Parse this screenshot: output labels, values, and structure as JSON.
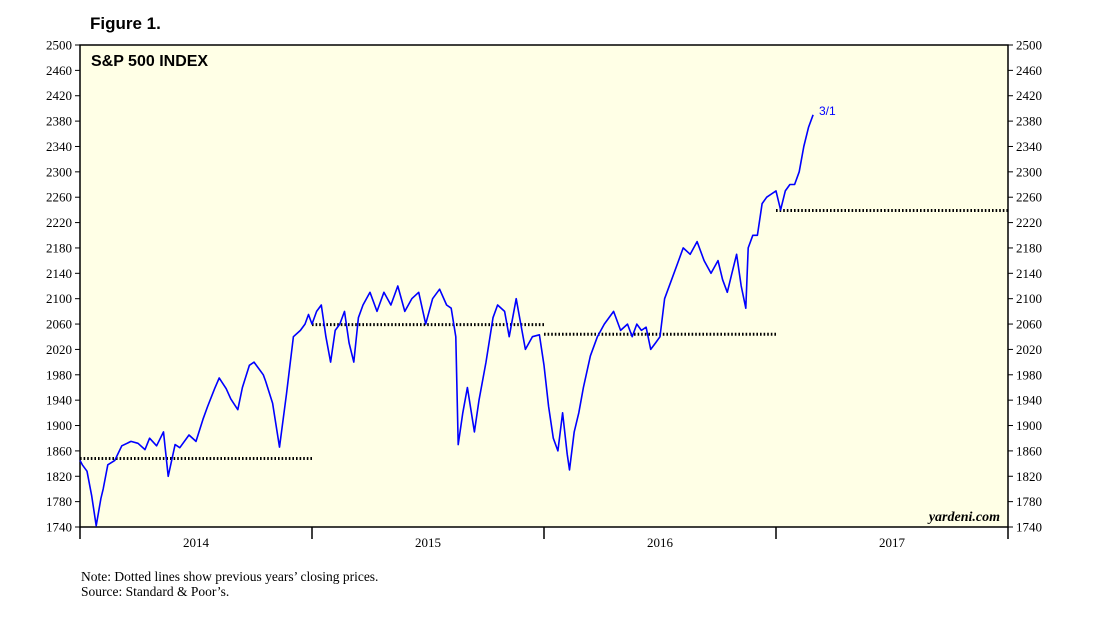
{
  "figure_label": "Figure 1.",
  "notes": {
    "line1": "Note: Dotted lines show previous years’ closing prices.",
    "line2": "Source: Standard & Poor’s."
  },
  "colors": {
    "background": "#ffffe6",
    "series": "#0000ff",
    "reference": "#000000"
  },
  "chart_data": {
    "type": "line",
    "title": "S&P 500 INDEX",
    "watermark": "yardeni.com",
    "end_label": "3/1",
    "xlabel": "",
    "ylabel": "",
    "xlim": [
      2014.0,
      2018.0
    ],
    "ylim": [
      1740,
      2500
    ],
    "yticks": [
      1740,
      1780,
      1820,
      1860,
      1900,
      1940,
      1980,
      2020,
      2060,
      2100,
      2140,
      2180,
      2220,
      2260,
      2300,
      2340,
      2380,
      2420,
      2460,
      2500
    ],
    "year_ticks": [
      2014,
      2015,
      2016,
      2017,
      2018
    ],
    "year_labels": [
      "2014",
      "2015",
      "2016",
      "2017"
    ],
    "grid": false,
    "series": [
      {
        "x": [
          2014.0,
          2014.01,
          2014.03,
          2014.05,
          2014.07,
          2014.09,
          2014.1,
          2014.12,
          2014.15,
          2014.18,
          2014.22,
          2014.25,
          2014.28,
          2014.3,
          2014.33,
          2014.36,
          2014.38,
          2014.41,
          2014.43,
          2014.47,
          2014.5,
          2014.53,
          2014.55,
          2014.58,
          2014.6,
          2014.63,
          2014.65,
          2014.68,
          2014.7,
          2014.73,
          2014.75,
          2014.77,
          2014.79,
          2014.8,
          2014.83,
          2014.86,
          2014.89,
          2014.92,
          2014.95,
          2014.97,
          2014.985,
          2015.0,
          2015.02,
          2015.04,
          2015.06,
          2015.08,
          2015.1,
          2015.12,
          2015.14,
          2015.16,
          2015.18,
          2015.2,
          2015.22,
          2015.25,
          2015.28,
          2015.31,
          2015.34,
          2015.37,
          2015.4,
          2015.43,
          2015.46,
          2015.49,
          2015.52,
          2015.55,
          2015.58,
          2015.6,
          2015.62,
          2015.63,
          2015.65,
          2015.67,
          2015.7,
          2015.72,
          2015.75,
          2015.78,
          2015.8,
          2015.83,
          2015.85,
          2015.88,
          2015.9,
          2015.92,
          2015.95,
          2015.98,
          2016.0,
          2016.02,
          2016.04,
          2016.06,
          2016.08,
          2016.1,
          2016.11,
          2016.13,
          2016.15,
          2016.17,
          2016.2,
          2016.23,
          2016.26,
          2016.3,
          2016.33,
          2016.36,
          2016.38,
          2016.4,
          2016.42,
          2016.44,
          2016.46,
          2016.48,
          2016.5,
          2016.52,
          2016.55,
          2016.58,
          2016.6,
          2016.63,
          2016.66,
          2016.69,
          2016.72,
          2016.75,
          2016.77,
          2016.79,
          2016.81,
          2016.83,
          2016.85,
          2016.87,
          2016.88,
          2016.9,
          2016.92,
          2016.94,
          2016.96,
          2016.98,
          2017.0,
          2017.02,
          2017.04,
          2017.06,
          2017.08,
          2017.1,
          2017.12,
          2017.14,
          2017.16
        ],
        "y": [
          1845,
          1838,
          1828,
          1790,
          1742,
          1785,
          1800,
          1838,
          1845,
          1868,
          1875,
          1872,
          1862,
          1880,
          1868,
          1890,
          1820,
          1870,
          1865,
          1885,
          1875,
          1910,
          1930,
          1958,
          1975,
          1958,
          1942,
          1925,
          1960,
          1995,
          2000,
          1990,
          1980,
          1970,
          1935,
          1866,
          1950,
          2040,
          2050,
          2060,
          2075,
          2060,
          2080,
          2090,
          2040,
          2000,
          2050,
          2060,
          2080,
          2030,
          2000,
          2070,
          2090,
          2110,
          2080,
          2110,
          2090,
          2120,
          2080,
          2100,
          2110,
          2060,
          2100,
          2115,
          2090,
          2085,
          2040,
          1870,
          1920,
          1960,
          1890,
          1940,
          2000,
          2070,
          2090,
          2080,
          2040,
          2100,
          2060,
          2020,
          2040,
          2043,
          1995,
          1930,
          1880,
          1860,
          1920,
          1855,
          1830,
          1890,
          1920,
          1960,
          2010,
          2040,
          2060,
          2080,
          2050,
          2060,
          2040,
          2060,
          2050,
          2055,
          2020,
          2030,
          2040,
          2100,
          2130,
          2160,
          2180,
          2170,
          2190,
          2160,
          2140,
          2160,
          2130,
          2110,
          2140,
          2170,
          2120,
          2085,
          2180,
          2200,
          2200,
          2250,
          2260,
          2265,
          2270,
          2240,
          2270,
          2280,
          2280,
          2300,
          2340,
          2370,
          2390
        ]
      }
    ],
    "reference_lines": [
      {
        "x0": 2014.0,
        "x1": 2015.0,
        "y": 1848
      },
      {
        "x0": 2015.0,
        "x1": 2016.0,
        "y": 2059
      },
      {
        "x0": 2016.0,
        "x1": 2017.0,
        "y": 2044
      },
      {
        "x0": 2017.0,
        "x1": 2018.0,
        "y": 2239
      }
    ]
  }
}
